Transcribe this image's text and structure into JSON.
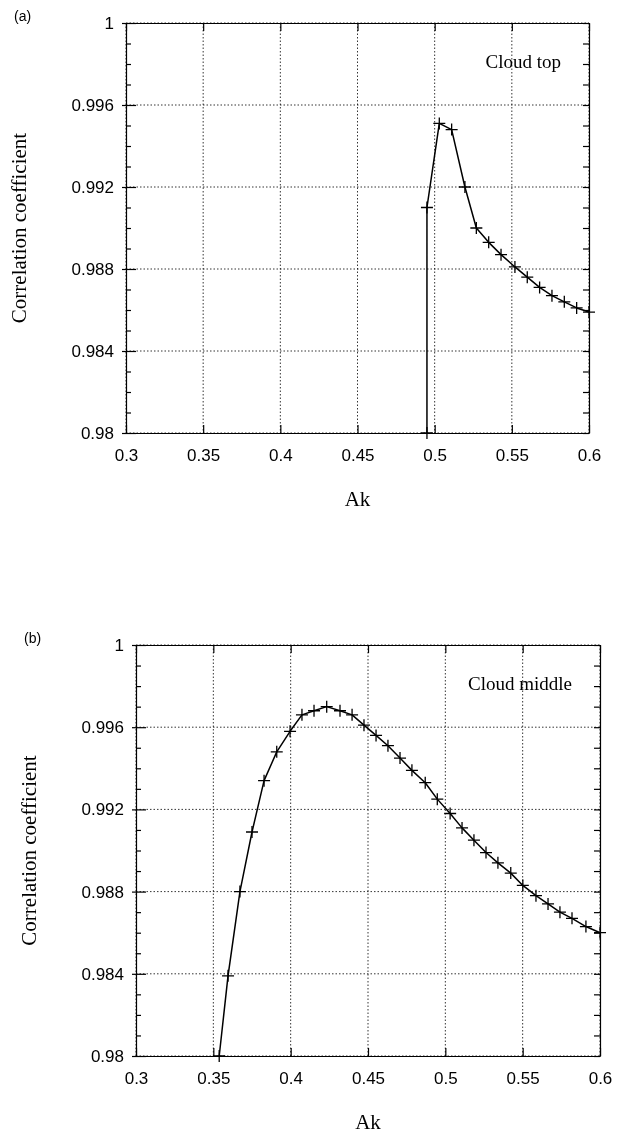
{
  "chart_data": [
    {
      "type": "line",
      "xlabel": "Ak",
      "ylabel": "Correlation coefficient",
      "annotations": [
        "(a)",
        "Cloud top"
      ],
      "marker": "cross",
      "line_style": "solid",
      "grid": true,
      "xlim": [
        0.3,
        0.6
      ],
      "xticks": [
        0.3,
        0.35,
        0.4,
        0.45,
        0.5,
        0.55,
        0.6
      ],
      "ylim": [
        0.98,
        1
      ],
      "yticks": [
        0.98,
        {
          "value": 0.981,
          "label": null
        },
        {
          "value": 0.982,
          "label": null
        },
        {
          "value": 0.983,
          "label": null
        },
        0.984,
        {
          "value": 0.985,
          "label": null
        },
        {
          "value": 0.986,
          "label": null
        },
        {
          "value": 0.987,
          "label": null
        },
        0.988,
        {
          "value": 0.989,
          "label": null
        },
        {
          "value": 0.99,
          "label": null
        },
        {
          "value": 0.991,
          "label": null
        },
        0.992,
        {
          "value": 0.993,
          "label": null
        },
        {
          "value": 0.994,
          "label": null
        },
        {
          "value": 0.995,
          "label": null
        },
        0.996,
        {
          "value": 0.997,
          "label": null
        },
        {
          "value": 0.998,
          "label": null
        },
        {
          "value": 0.999,
          "label": null
        },
        1
      ],
      "series": [
        {
          "color": "#000000",
          "x": [
            0.495,
            0.495,
            0.503,
            0.511,
            0.5196,
            0.527,
            0.535,
            0.543,
            0.552,
            0.56,
            0.568,
            0.576,
            0.584,
            0.592,
            0.6
          ],
          "values": [
            0.98,
            0.991,
            0.9951,
            0.9948,
            0.992,
            0.99,
            0.9893,
            0.9887,
            0.9881,
            0.9876,
            0.9871,
            0.9867,
            0.9864,
            0.9861,
            0.9859
          ]
        }
      ]
    },
    {
      "type": "line",
      "xlabel": "Ak",
      "ylabel": "Correlation coefficient",
      "annotations": [
        "(b)",
        "Cloud middle"
      ],
      "marker": "cross",
      "line_style": "solid",
      "grid": true,
      "xlim": [
        0.3,
        0.6
      ],
      "xticks": [
        0.3,
        0.35,
        0.4,
        0.45,
        0.5,
        0.55,
        0.6
      ],
      "ylim": [
        0.98,
        1
      ],
      "yticks": [
        0.98,
        {
          "value": 0.981,
          "label": null
        },
        {
          "value": 0.982,
          "label": null
        },
        {
          "value": 0.983,
          "label": null
        },
        0.984,
        {
          "value": 0.985,
          "label": null
        },
        {
          "value": 0.986,
          "label": null
        },
        {
          "value": 0.987,
          "label": null
        },
        0.988,
        {
          "value": 0.989,
          "label": null
        },
        {
          "value": 0.99,
          "label": null
        },
        {
          "value": 0.991,
          "label": null
        },
        0.992,
        {
          "value": 0.993,
          "label": null
        },
        {
          "value": 0.994,
          "label": null
        },
        {
          "value": 0.995,
          "label": null
        },
        0.996,
        {
          "value": 0.997,
          "label": null
        },
        {
          "value": 0.998,
          "label": null
        },
        {
          "value": 0.999,
          "label": null
        },
        1
      ],
      "series": [
        {
          "color": "#000000",
          "x": [
            0.3538,
            0.3595,
            0.3672,
            0.375,
            0.3828,
            0.391,
            0.3996,
            0.4073,
            0.4151,
            0.4233,
            0.4319,
            0.4397,
            0.4474,
            0.4552,
            0.4629,
            0.4707,
            0.4784,
            0.487,
            0.4948,
            0.5031,
            0.5108,
            0.5185,
            0.5263,
            0.534,
            0.5423,
            0.5501,
            0.5586,
            0.5664,
            0.5741,
            0.5819,
            0.5909,
            0.6
          ],
          "values": [
            0.98,
            0.9839,
            0.988,
            0.9909,
            0.9934,
            0.9948,
            0.9958,
            0.9966,
            0.9968,
            0.997,
            0.9968,
            0.9966,
            0.9961,
            0.9956,
            0.9951,
            0.9945,
            0.9939,
            0.9933,
            0.9925,
            0.9918,
            0.9911,
            0.9905,
            0.9899,
            0.9894,
            0.9889,
            0.9883,
            0.9878,
            0.9874,
            0.987,
            0.9867,
            0.9863,
            0.986
          ]
        }
      ]
    }
  ]
}
